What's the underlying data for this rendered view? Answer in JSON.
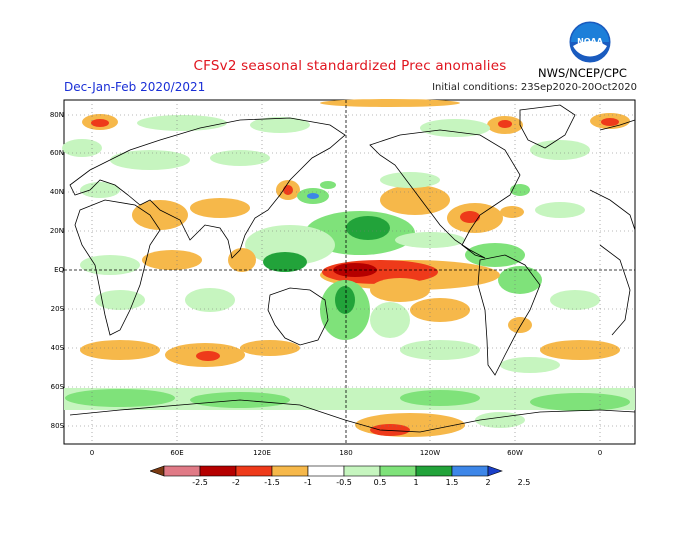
{
  "title": "CFSv2 seasonal standardized Prec anomalies",
  "period": "Dec-Jan-Feb 2020/2021",
  "initial_conditions": "Initial conditions: 23Sep2020-20Oct2020",
  "agency": "NWS/NCEP/CPC",
  "logo_text": "NOAA",
  "lat_labels": [
    "80N",
    "60N",
    "40N",
    "20N",
    "EQ",
    "20S",
    "40S",
    "60S",
    "80S"
  ],
  "lon_labels": [
    "0",
    "60E",
    "120E",
    "180",
    "120W",
    "60W",
    "0"
  ],
  "colorbar": {
    "labels": [
      "-2.5",
      "-2",
      "-1.5",
      "-1",
      "-0.5",
      "0.5",
      "1",
      "1.5",
      "2",
      "2.5"
    ],
    "colors": [
      "#7a3a12",
      "#e07a86",
      "#b50000",
      "#ee3a1a",
      "#f6b84a",
      "#ffffff",
      "#c6f5bf",
      "#7fe27a",
      "#22a33a",
      "#3d86e8",
      "#1a3fc8"
    ]
  },
  "colors": {
    "title": "#e0141e",
    "period": "#1a2fd6"
  }
}
